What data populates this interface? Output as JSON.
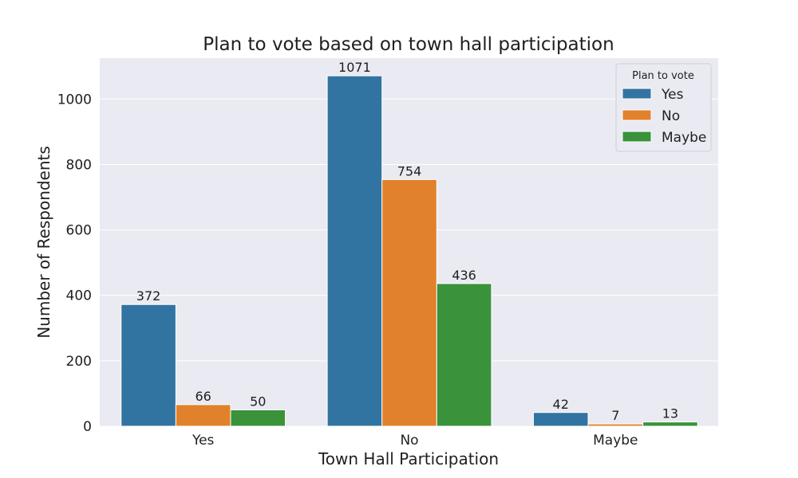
{
  "chart_data": {
    "type": "bar",
    "title": "Plan to vote based on town hall participation",
    "xlabel": "Town Hall Participation",
    "ylabel": "Number of Respondents",
    "categories": [
      "Yes",
      "No",
      "Maybe"
    ],
    "series": [
      {
        "name": "Yes",
        "values": [
          372,
          1071,
          42
        ],
        "color": "#3274a1"
      },
      {
        "name": "No",
        "values": [
          66,
          754,
          7
        ],
        "color": "#e1812c"
      },
      {
        "name": "Maybe",
        "values": [
          50,
          436,
          13
        ],
        "color": "#3a923a"
      }
    ],
    "ylim": [
      0,
      1125
    ],
    "yticks": [
      0,
      200,
      400,
      600,
      800,
      1000
    ],
    "grid": true,
    "legend": {
      "title": "Plan to vote",
      "placement": "top-right"
    },
    "colors": {
      "background": "#eaeaf2",
      "gridline": "#ffffff",
      "text": "#1f1f1f"
    }
  }
}
